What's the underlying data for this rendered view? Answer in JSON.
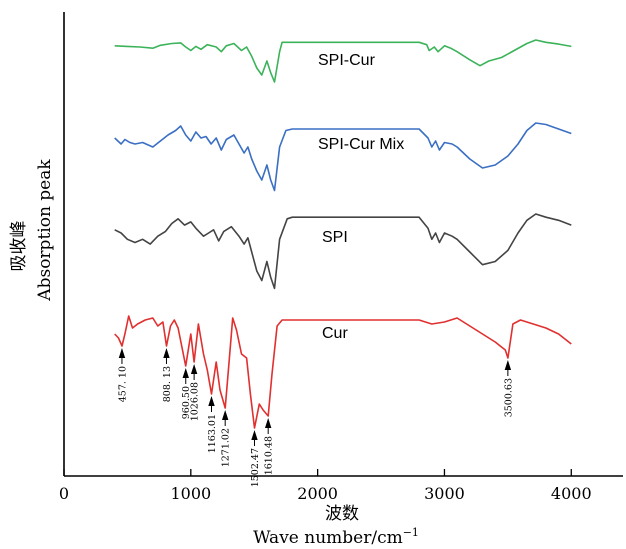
{
  "chart_data": {
    "type": "line",
    "xlabel_cn": "波数",
    "xlabel_en": "Wave  number/cm",
    "xlabel_sup": "−1",
    "ylabel_cn": "吸收峰",
    "ylabel_en": "Absorption  peak",
    "xlim": [
      0,
      4400
    ],
    "x_ticks": [
      0,
      1000,
      2000,
      3000,
      4000
    ],
    "tick_labels": [
      "0",
      "1000",
      "2000",
      "3000",
      "4000"
    ],
    "grid": false,
    "series": [
      {
        "name": "SPI-Cur",
        "color": "#3cb35a",
        "points": [
          [
            400,
            0.97
          ],
          [
            500,
            0.965
          ],
          [
            600,
            0.96
          ],
          [
            700,
            0.95
          ],
          [
            760,
            0.975
          ],
          [
            850,
            0.99
          ],
          [
            920,
            0.995
          ],
          [
            960,
            0.96
          ],
          [
            1000,
            0.93
          ],
          [
            1040,
            0.965
          ],
          [
            1080,
            0.94
          ],
          [
            1130,
            0.98
          ],
          [
            1200,
            0.96
          ],
          [
            1240,
            0.92
          ],
          [
            1280,
            0.97
          ],
          [
            1340,
            0.99
          ],
          [
            1400,
            0.93
          ],
          [
            1440,
            0.96
          ],
          [
            1480,
            0.88
          ],
          [
            1520,
            0.78
          ],
          [
            1560,
            0.72
          ],
          [
            1600,
            0.84
          ],
          [
            1630,
            0.74
          ],
          [
            1660,
            0.66
          ],
          [
            1700,
            0.92
          ],
          [
            1720,
            1.0
          ],
          [
            1800,
            1.0
          ],
          [
            2000,
            1.0
          ],
          [
            2400,
            1.0
          ],
          [
            2800,
            1.0
          ],
          [
            2860,
            0.98
          ],
          [
            2880,
            0.93
          ],
          [
            2920,
            0.96
          ],
          [
            2950,
            0.92
          ],
          [
            3000,
            0.97
          ],
          [
            3050,
            0.95
          ],
          [
            3100,
            0.92
          ],
          [
            3200,
            0.85
          ],
          [
            3280,
            0.8
          ],
          [
            3350,
            0.84
          ],
          [
            3450,
            0.87
          ],
          [
            3550,
            0.93
          ],
          [
            3650,
            0.99
          ],
          [
            3720,
            1.02
          ],
          [
            3800,
            1.0
          ],
          [
            3900,
            0.985
          ],
          [
            4000,
            0.965
          ]
        ]
      },
      {
        "name": "SPI-Cur Mix",
        "color": "#3a6fc4",
        "points": [
          [
            400,
            0.9
          ],
          [
            450,
            0.86
          ],
          [
            480,
            0.89
          ],
          [
            520,
            0.87
          ],
          [
            560,
            0.86
          ],
          [
            620,
            0.87
          ],
          [
            700,
            0.84
          ],
          [
            760,
            0.88
          ],
          [
            820,
            0.92
          ],
          [
            880,
            0.95
          ],
          [
            920,
            0.98
          ],
          [
            960,
            0.92
          ],
          [
            1000,
            0.88
          ],
          [
            1040,
            0.94
          ],
          [
            1080,
            0.9
          ],
          [
            1120,
            0.91
          ],
          [
            1160,
            0.86
          ],
          [
            1200,
            0.9
          ],
          [
            1240,
            0.82
          ],
          [
            1280,
            0.89
          ],
          [
            1340,
            0.92
          ],
          [
            1380,
            0.86
          ],
          [
            1420,
            0.8
          ],
          [
            1450,
            0.84
          ],
          [
            1480,
            0.76
          ],
          [
            1520,
            0.68
          ],
          [
            1560,
            0.62
          ],
          [
            1600,
            0.72
          ],
          [
            1630,
            0.62
          ],
          [
            1660,
            0.55
          ],
          [
            1700,
            0.84
          ],
          [
            1750,
            0.95
          ],
          [
            1800,
            0.96
          ],
          [
            2000,
            0.96
          ],
          [
            2400,
            0.96
          ],
          [
            2800,
            0.96
          ],
          [
            2870,
            0.9
          ],
          [
            2900,
            0.84
          ],
          [
            2930,
            0.88
          ],
          [
            2960,
            0.82
          ],
          [
            3000,
            0.87
          ],
          [
            3060,
            0.86
          ],
          [
            3100,
            0.84
          ],
          [
            3200,
            0.76
          ],
          [
            3300,
            0.7
          ],
          [
            3400,
            0.72
          ],
          [
            3500,
            0.78
          ],
          [
            3580,
            0.86
          ],
          [
            3650,
            0.95
          ],
          [
            3720,
            1.0
          ],
          [
            3800,
            0.99
          ],
          [
            3900,
            0.96
          ],
          [
            4000,
            0.93
          ]
        ]
      },
      {
        "name": "SPI",
        "color": "#444444",
        "points": [
          [
            400,
            0.92
          ],
          [
            450,
            0.9
          ],
          [
            500,
            0.86
          ],
          [
            560,
            0.84
          ],
          [
            620,
            0.86
          ],
          [
            680,
            0.83
          ],
          [
            740,
            0.88
          ],
          [
            800,
            0.91
          ],
          [
            850,
            0.96
          ],
          [
            900,
            0.99
          ],
          [
            950,
            0.95
          ],
          [
            1000,
            0.97
          ],
          [
            1040,
            0.93
          ],
          [
            1100,
            0.88
          ],
          [
            1140,
            0.9
          ],
          [
            1180,
            0.92
          ],
          [
            1220,
            0.85
          ],
          [
            1260,
            0.91
          ],
          [
            1320,
            0.94
          ],
          [
            1380,
            0.88
          ],
          [
            1420,
            0.83
          ],
          [
            1450,
            0.87
          ],
          [
            1480,
            0.78
          ],
          [
            1520,
            0.66
          ],
          [
            1560,
            0.6
          ],
          [
            1600,
            0.72
          ],
          [
            1630,
            0.62
          ],
          [
            1660,
            0.55
          ],
          [
            1700,
            0.86
          ],
          [
            1760,
            0.99
          ],
          [
            1800,
            1.0
          ],
          [
            2000,
            1.0
          ],
          [
            2400,
            1.0
          ],
          [
            2800,
            1.0
          ],
          [
            2870,
            0.93
          ],
          [
            2900,
            0.86
          ],
          [
            2930,
            0.9
          ],
          [
            2960,
            0.84
          ],
          [
            3000,
            0.9
          ],
          [
            3060,
            0.88
          ],
          [
            3100,
            0.86
          ],
          [
            3200,
            0.78
          ],
          [
            3300,
            0.7
          ],
          [
            3400,
            0.72
          ],
          [
            3500,
            0.79
          ],
          [
            3580,
            0.9
          ],
          [
            3650,
            0.98
          ],
          [
            3720,
            1.02
          ],
          [
            3800,
            1.0
          ],
          [
            3900,
            0.98
          ],
          [
            4000,
            0.95
          ]
        ]
      },
      {
        "name": "Cur",
        "color": "#e0302f",
        "points": [
          [
            400,
            0.9
          ],
          [
            430,
            0.88
          ],
          [
            457,
            0.84
          ],
          [
            480,
            0.9
          ],
          [
            510,
            0.99
          ],
          [
            540,
            0.93
          ],
          [
            580,
            0.95
          ],
          [
            640,
            0.97
          ],
          [
            700,
            0.98
          ],
          [
            740,
            0.94
          ],
          [
            780,
            0.96
          ],
          [
            808,
            0.84
          ],
          [
            840,
            0.94
          ],
          [
            870,
            0.97
          ],
          [
            900,
            0.93
          ],
          [
            960,
            0.74
          ],
          [
            1000,
            0.9
          ],
          [
            1026,
            0.76
          ],
          [
            1060,
            0.95
          ],
          [
            1100,
            0.8
          ],
          [
            1130,
            0.72
          ],
          [
            1163,
            0.6
          ],
          [
            1200,
            0.76
          ],
          [
            1230,
            0.62
          ],
          [
            1271,
            0.53
          ],
          [
            1300,
            0.75
          ],
          [
            1330,
            0.98
          ],
          [
            1360,
            0.92
          ],
          [
            1400,
            0.8
          ],
          [
            1440,
            0.78
          ],
          [
            1470,
            0.6
          ],
          [
            1502,
            0.43
          ],
          [
            1540,
            0.55
          ],
          [
            1570,
            0.52
          ],
          [
            1610,
            0.49
          ],
          [
            1640,
            0.7
          ],
          [
            1680,
            0.94
          ],
          [
            1720,
            0.97
          ],
          [
            1800,
            0.97
          ],
          [
            2000,
            0.97
          ],
          [
            2400,
            0.97
          ],
          [
            2800,
            0.97
          ],
          [
            2900,
            0.95
          ],
          [
            3000,
            0.96
          ],
          [
            3100,
            0.98
          ],
          [
            3200,
            0.94
          ],
          [
            3300,
            0.9
          ],
          [
            3400,
            0.86
          ],
          [
            3480,
            0.82
          ],
          [
            3500,
            0.78
          ],
          [
            3540,
            0.95
          ],
          [
            3600,
            0.97
          ],
          [
            3700,
            0.95
          ],
          [
            3800,
            0.93
          ],
          [
            3900,
            0.9
          ],
          [
            4000,
            0.85
          ]
        ]
      }
    ],
    "peak_annotations": [
      {
        "x": 457,
        "label": "457. 10",
        "series": "Cur"
      },
      {
        "x": 808,
        "label": "808. 13",
        "series": "Cur"
      },
      {
        "x": 960,
        "label": "960.50",
        "series": "Cur"
      },
      {
        "x": 1026,
        "label": "1026.08",
        "series": "Cur"
      },
      {
        "x": 1163,
        "label": "1163.01",
        "series": "Cur"
      },
      {
        "x": 1271,
        "label": "1271.02",
        "series": "Cur"
      },
      {
        "x": 1502,
        "label": "1502.47",
        "series": "Cur"
      },
      {
        "x": 1610,
        "label": "1610.48",
        "series": "Cur"
      },
      {
        "x": 3500,
        "label": "3500.63",
        "series": "Cur"
      }
    ]
  }
}
